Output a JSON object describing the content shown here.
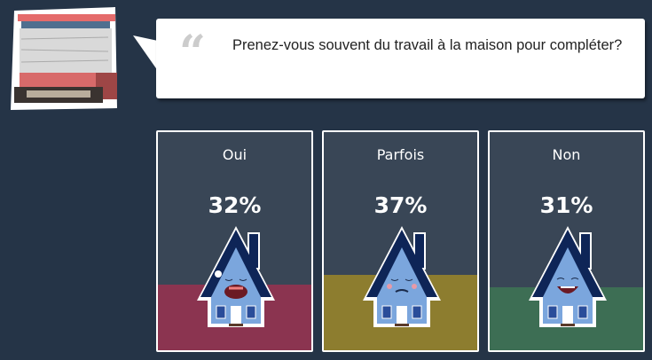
{
  "question": {
    "text": "Prenez-vous souvent du travail à la maison pour compléter?",
    "quote_icon": "quote-icon"
  },
  "options": [
    {
      "label": "Oui",
      "percent": "32%",
      "value": 32,
      "color": "#8b3450",
      "face": "crying"
    },
    {
      "label": "Parfois",
      "percent": "37%",
      "value": 37,
      "color": "#8d7d2f",
      "face": "neutral"
    },
    {
      "label": "Non",
      "percent": "31%",
      "value": 31,
      "color": "#3d6e54",
      "face": "happy"
    }
  ],
  "colors": {
    "background": "#253447",
    "card": "#394656"
  }
}
